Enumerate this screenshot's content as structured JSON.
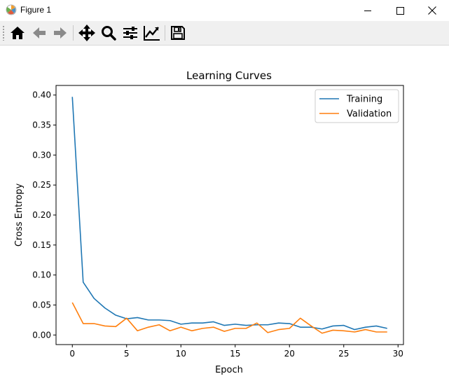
{
  "window": {
    "title": "Figure 1",
    "icon": "matplotlib-logo-icon",
    "controls": [
      "minimize-icon",
      "maximize-icon",
      "close-icon"
    ]
  },
  "toolbar": {
    "buttons": [
      {
        "name": "home",
        "icon": "home-icon"
      },
      {
        "name": "back",
        "icon": "arrow-left-icon"
      },
      {
        "name": "forward",
        "icon": "arrow-right-icon"
      },
      {
        "name": "pan",
        "icon": "move-arrows-icon"
      },
      {
        "name": "zoom",
        "icon": "magnifier-icon"
      },
      {
        "name": "configure-subplots",
        "icon": "sliders-icon"
      },
      {
        "name": "edit-axis",
        "icon": "line-chart-icon"
      },
      {
        "name": "save",
        "icon": "floppy-disk-icon"
      }
    ]
  },
  "chart_data": {
    "type": "line",
    "title": "Learning Curves",
    "xlabel": "Epoch",
    "ylabel": "Cross Entropy",
    "xlim": [
      -1.5,
      30.5
    ],
    "ylim": [
      -0.016,
      0.416
    ],
    "xticks": [
      0,
      5,
      10,
      15,
      20,
      25,
      30
    ],
    "xtick_labels": [
      "0",
      "5",
      "10",
      "15",
      "20",
      "25",
      "30"
    ],
    "yticks": [
      0.0,
      0.05,
      0.1,
      0.15,
      0.2,
      0.25,
      0.3,
      0.35,
      0.4
    ],
    "ytick_labels": [
      "0.00",
      "0.05",
      "0.10",
      "0.15",
      "0.20",
      "0.25",
      "0.30",
      "0.35",
      "0.40"
    ],
    "grid": false,
    "legend": "top-right",
    "x": [
      0,
      1,
      2,
      3,
      4,
      5,
      6,
      7,
      8,
      9,
      10,
      11,
      12,
      13,
      14,
      15,
      16,
      17,
      18,
      19,
      20,
      21,
      22,
      23,
      24,
      25,
      26,
      27,
      28,
      29
    ],
    "series": [
      {
        "name": "Training",
        "color": "#1f77b4",
        "values": [
          0.397,
          0.088,
          0.061,
          0.045,
          0.033,
          0.027,
          0.029,
          0.025,
          0.025,
          0.024,
          0.018,
          0.02,
          0.02,
          0.022,
          0.016,
          0.018,
          0.016,
          0.017,
          0.017,
          0.02,
          0.019,
          0.013,
          0.013,
          0.01,
          0.015,
          0.016,
          0.009,
          0.013,
          0.015,
          0.011
        ]
      },
      {
        "name": "Validation",
        "color": "#ff7f0e",
        "values": [
          0.054,
          0.019,
          0.019,
          0.015,
          0.014,
          0.028,
          0.007,
          0.013,
          0.017,
          0.007,
          0.013,
          0.007,
          0.011,
          0.013,
          0.006,
          0.011,
          0.011,
          0.02,
          0.004,
          0.009,
          0.011,
          0.028,
          0.015,
          0.003,
          0.008,
          0.007,
          0.005,
          0.009,
          0.005,
          0.005
        ]
      }
    ]
  }
}
